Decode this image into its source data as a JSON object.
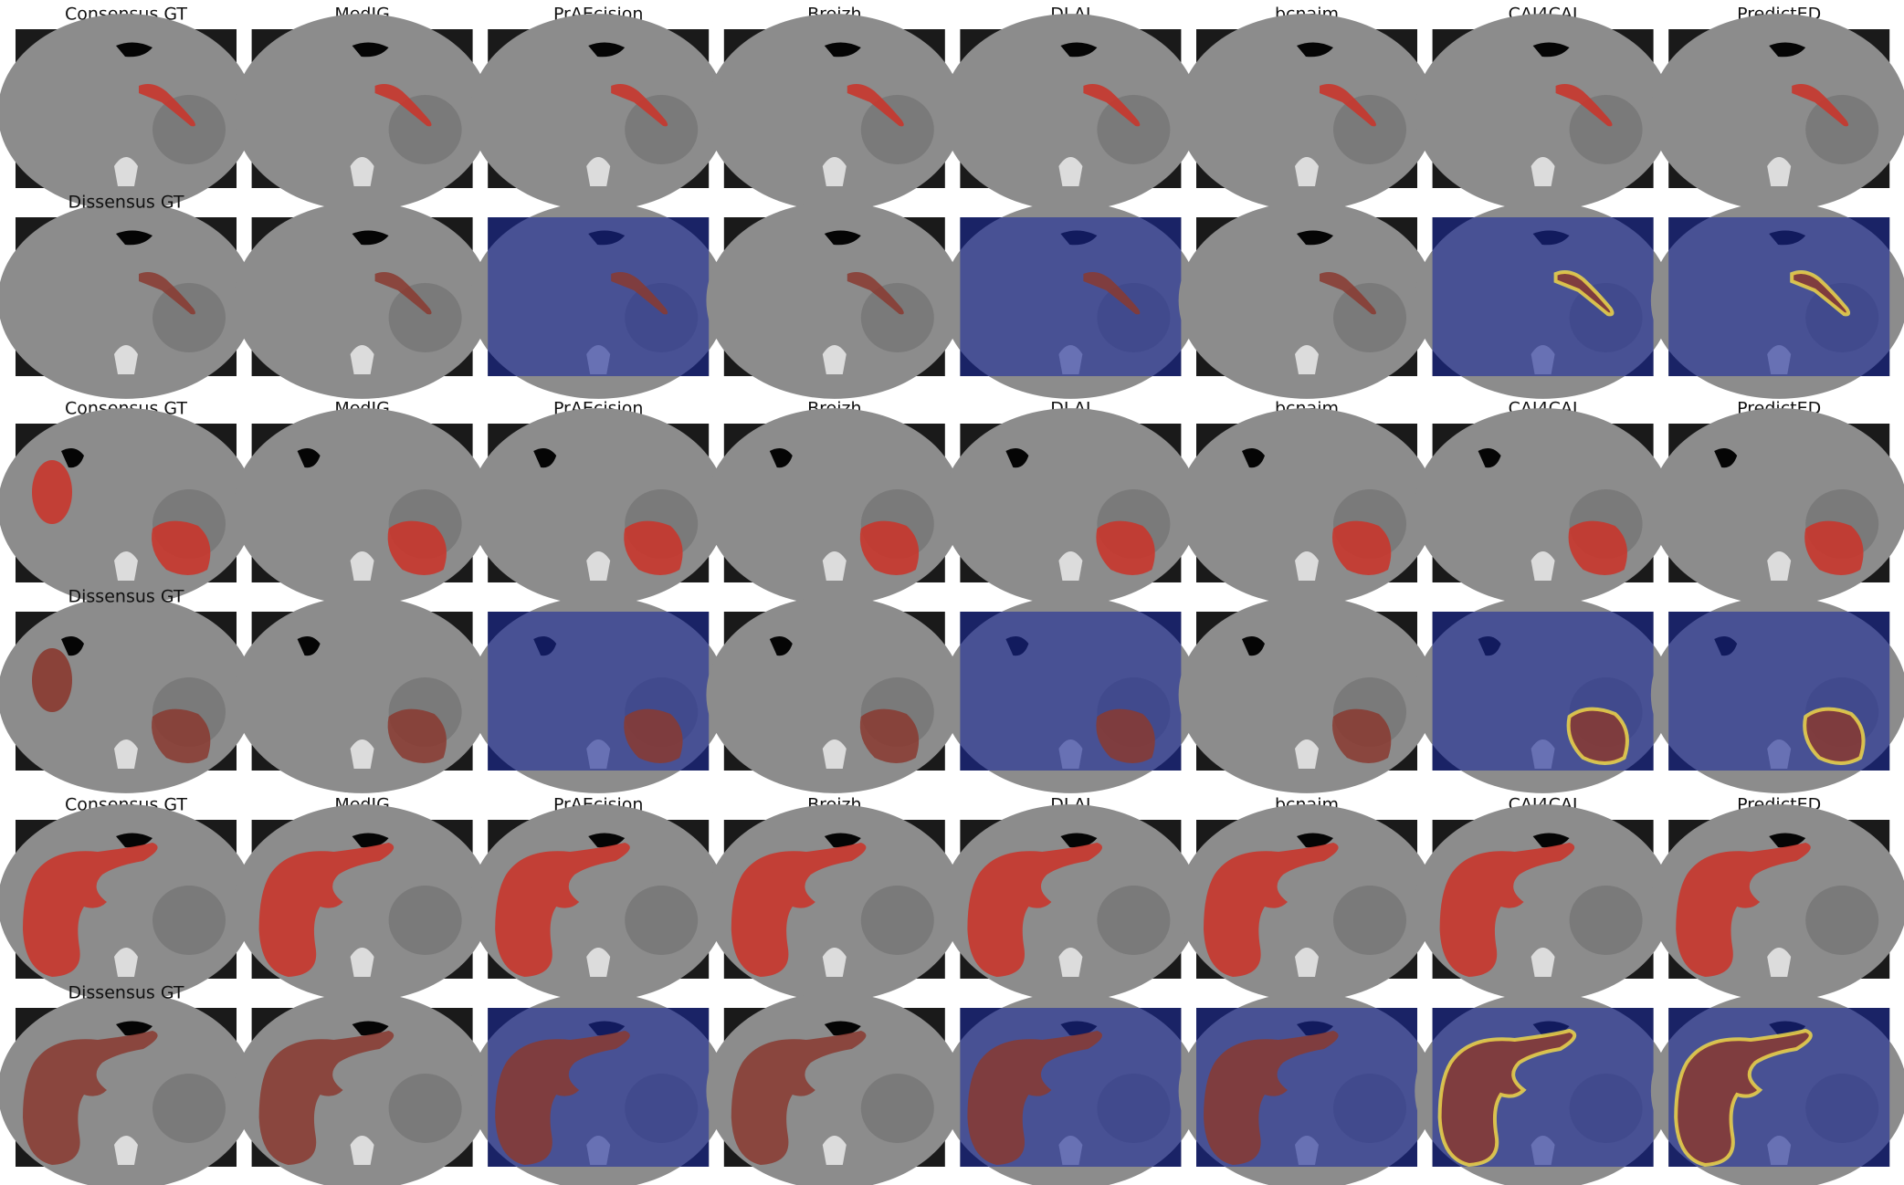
{
  "groups": [
    {
      "columns": [
        "Consensus GT",
        "MedIG",
        "PrAEcision",
        "Breizh",
        "DLAI",
        "bcnaim",
        "CAI4CAI",
        "PredictED"
      ],
      "dissensus_label": "Dissensus GT"
    },
    {
      "columns": [
        "Consensus GT",
        "MedIG",
        "PrAEcision",
        "Breizh",
        "DLAI",
        "bcnaim",
        "CAI4CAI",
        "PredictED"
      ],
      "dissensus_label": "Dissensus GT"
    },
    {
      "columns": [
        "Consensus GT",
        "MedIG",
        "PrAEcision",
        "Breizh",
        "DLAI",
        "bcnaim",
        "CAI4CAI",
        "PredictED"
      ],
      "dissensus_label": "Dissensus GT"
    }
  ]
}
